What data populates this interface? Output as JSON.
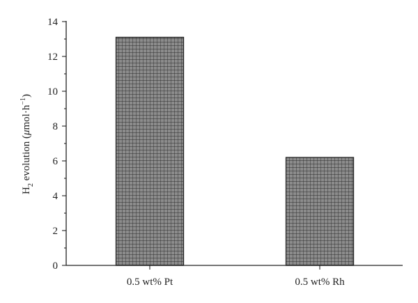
{
  "chart_data": {
    "type": "bar",
    "categories": [
      "0.5 wt% Pt",
      "0.5 wt% Rh"
    ],
    "values": [
      13.1,
      6.2
    ],
    "title": "",
    "xlabel": "",
    "ylabel": "H2 evolution (μmol·h−1)",
    "ylabel_parts": {
      "main": "H",
      "sub": "2",
      "rest": " evolution (",
      "mu": "μ",
      "unit": "mol·h",
      "sup": "−1",
      "close": ")"
    },
    "ylim": [
      0,
      14
    ],
    "yticks": [
      "0",
      "2",
      "4",
      "6",
      "8",
      "10",
      "12",
      "14"
    ],
    "grid": false,
    "legend": "none",
    "bar_color": "#8c8c8c",
    "bar_pattern": "crosshatch-grid",
    "line_color": "#222222"
  }
}
